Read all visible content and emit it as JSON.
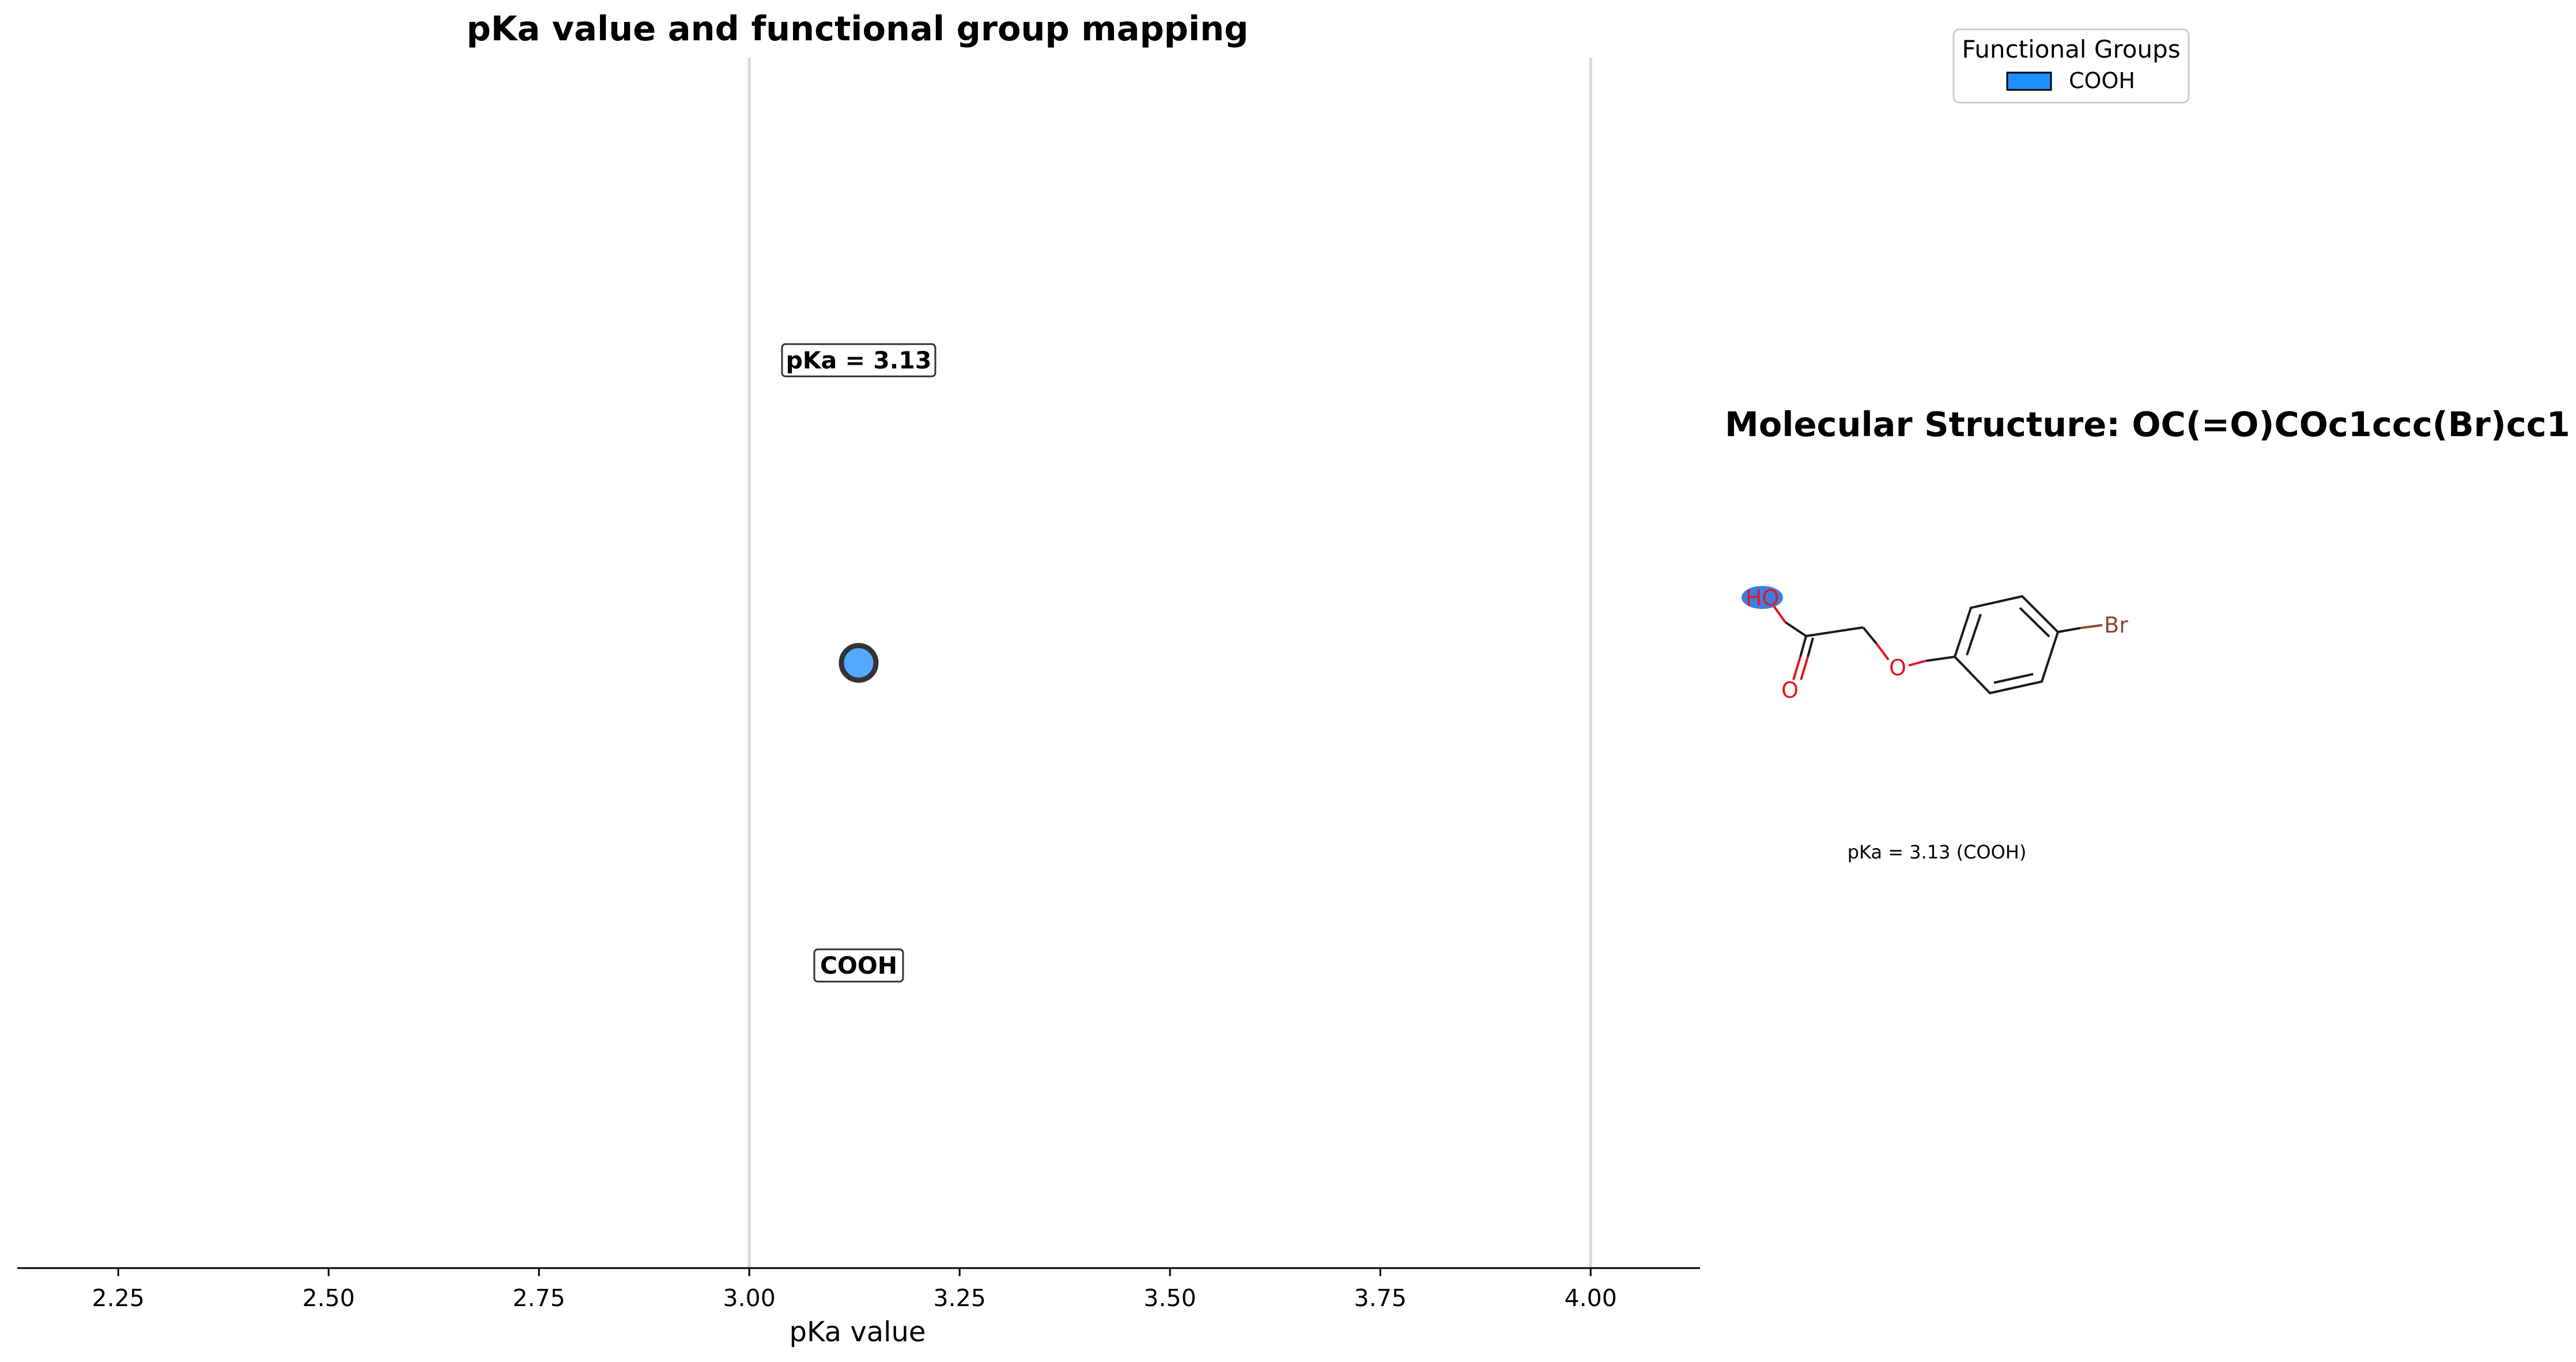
{
  "chart_data": {
    "type": "scatter",
    "title": "pKa value and functional group mapping",
    "xlabel": "pKa value",
    "ylabel": "",
    "xlim": [
      2.13,
      4.13
    ],
    "ylim": [
      0,
      1
    ],
    "x_ticks": [
      2.25,
      2.5,
      2.75,
      3.0,
      3.25,
      3.5,
      3.75,
      4.0
    ],
    "x_tick_labels": [
      "2.25",
      "2.50",
      "2.75",
      "3.00",
      "3.25",
      "3.50",
      "3.75",
      "4.00"
    ],
    "reference_lines": [
      3.0,
      4.0
    ],
    "points": [
      {
        "x": 3.13,
        "group": "COOH",
        "value_label": "pKa = 3.13",
        "group_label": "COOH"
      }
    ],
    "legend": {
      "title": "Functional Groups",
      "entries": [
        {
          "label": "COOH",
          "color": "#1e90ff"
        }
      ],
      "placement": "top-right"
    }
  },
  "structure_panel": {
    "title": "Molecular Structure: OC(=O)COc1ccc(Br)cc1",
    "caption": "pKa = 3.13 (COOH)",
    "atoms": {
      "hydroxyl": "HO",
      "carbonyl_o": "O",
      "ether_o": "O",
      "bromine": "Br"
    }
  },
  "colors": {
    "point_fill": "#55aaff",
    "point_edge": "#333333",
    "legend_patch": "#1e90ff",
    "highlight": "#3a7fe0",
    "oxygen": "#e8141a",
    "bromine": "#8b4a2a",
    "vline": "#d9d9d9"
  }
}
